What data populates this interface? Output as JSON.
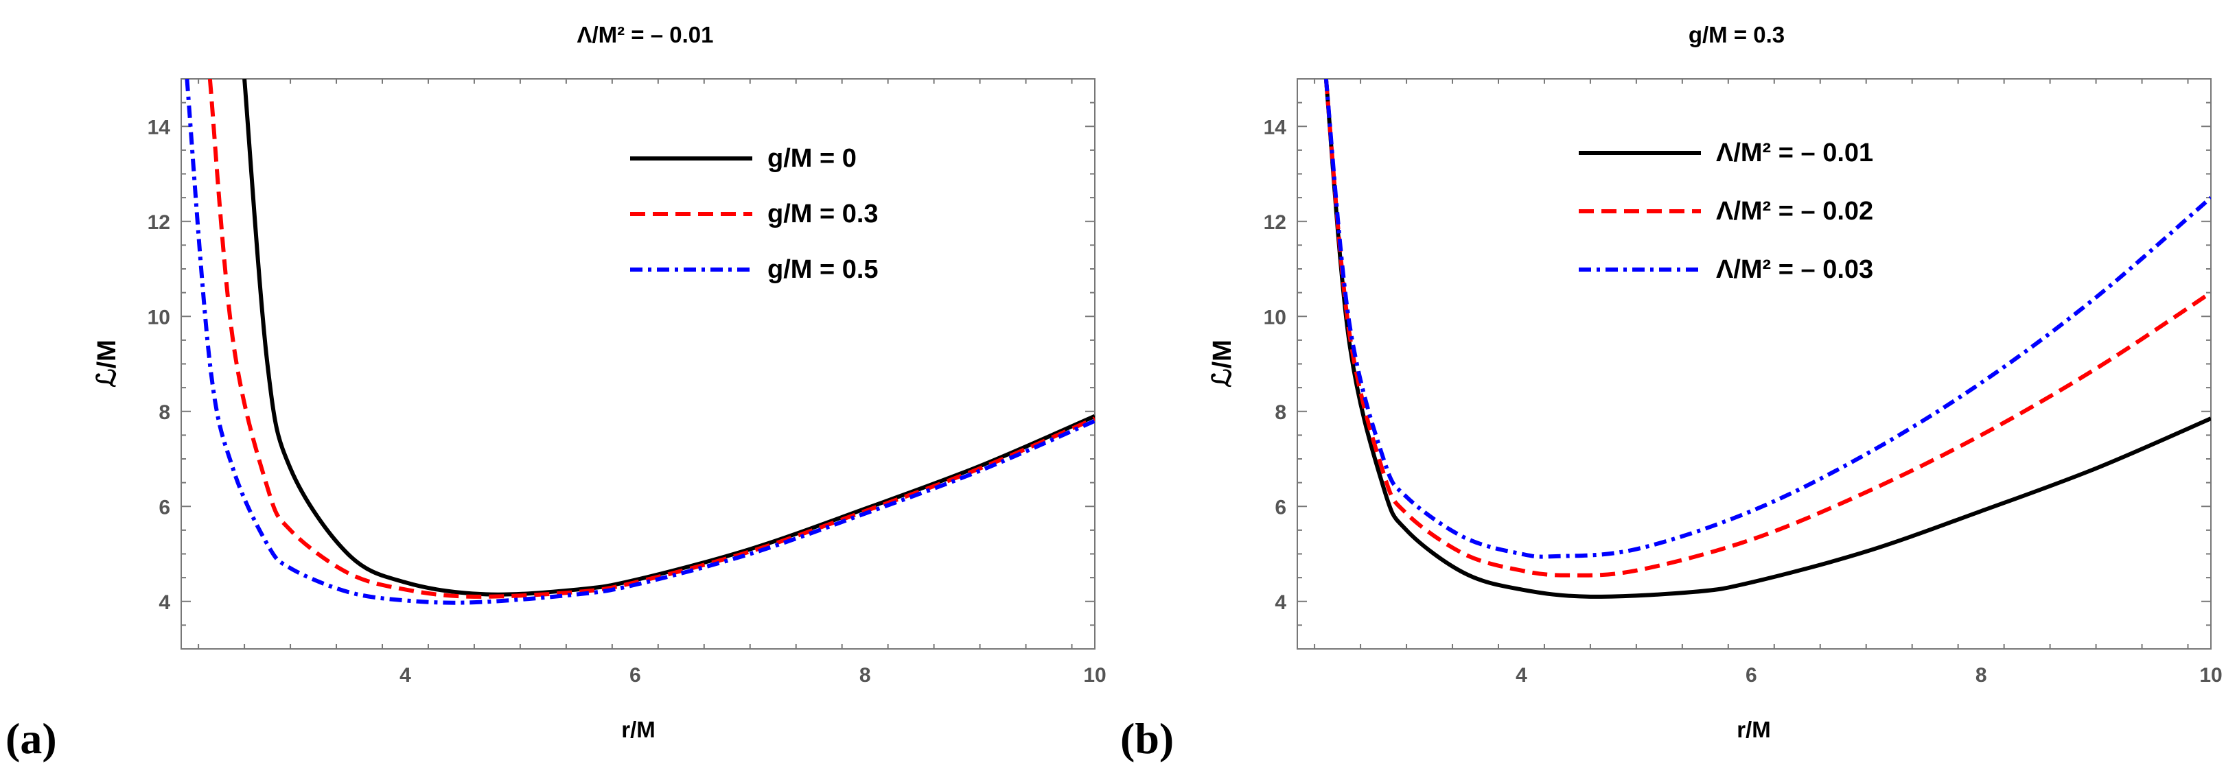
{
  "chart_data": [
    {
      "type": "line",
      "panel_label": "(a)",
      "title": "Λ/M² = – 0.01",
      "xlabel": "r/M",
      "ylabel": "ℒ/M",
      "xlim": [
        2.05,
        10.0
      ],
      "ylim": [
        3.0,
        15.0
      ],
      "xticks": [
        "4",
        "6",
        "8",
        "10"
      ],
      "yticks": [
        "4",
        "6",
        "8",
        "10",
        "12",
        "14"
      ],
      "legend_position": "top-right",
      "grid": false,
      "series": [
        {
          "name": "g/M = 0",
          "style": "solid",
          "color": "#000000",
          "lambda": -0.01,
          "g": 0.0,
          "x": [
            2.6,
            2.8,
            3.0,
            3.5,
            4.0,
            4.7,
            5.5,
            6.0,
            7.0,
            8.0,
            9.0,
            10.0
          ],
          "y": [
            15.0,
            9.0,
            6.8,
            5.0,
            4.4,
            4.15,
            4.25,
            4.45,
            5.1,
            5.95,
            6.85,
            7.9
          ]
        },
        {
          "name": "g/M = 0.3",
          "style": "dashed",
          "color": "#ff0000",
          "lambda": -0.01,
          "g": 0.3,
          "x": [
            2.3,
            2.5,
            2.8,
            3.0,
            3.5,
            4.0,
            4.6,
            5.5,
            6.0,
            7.0,
            8.0,
            9.0,
            10.0
          ],
          "y": [
            15.0,
            9.5,
            6.4,
            5.5,
            4.6,
            4.25,
            4.1,
            4.2,
            4.4,
            5.05,
            5.9,
            6.8,
            7.85
          ]
        },
        {
          "name": "g/M = 0.5",
          "style": "dash-dot",
          "color": "#0000ff",
          "lambda": -0.01,
          "g": 0.5,
          "x": [
            2.1,
            2.3,
            2.5,
            2.8,
            3.0,
            3.5,
            4.0,
            4.6,
            5.5,
            6.0,
            7.0,
            8.0,
            9.0,
            10.0
          ],
          "y": [
            15.0,
            9.0,
            6.8,
            5.2,
            4.7,
            4.2,
            4.02,
            3.98,
            4.15,
            4.35,
            5.0,
            5.85,
            6.75,
            7.8
          ]
        }
      ]
    },
    {
      "type": "line",
      "panel_label": "(b)",
      "title": "g/M = 0.3",
      "xlabel": "r/M",
      "ylabel": "ℒ/M",
      "xlim": [
        2.05,
        10.0
      ],
      "ylim": [
        3.0,
        15.0
      ],
      "xticks": [
        "4",
        "6",
        "8",
        "10"
      ],
      "yticks": [
        "4",
        "6",
        "8",
        "10",
        "12",
        "14"
      ],
      "legend_position": "top-right",
      "grid": false,
      "series": [
        {
          "name": "Λ/M² = – 0.01",
          "style": "solid",
          "color": "#000000",
          "lambda": -0.01,
          "g": 0.3,
          "x": [
            2.3,
            2.5,
            2.8,
            3.0,
            3.5,
            4.0,
            4.6,
            5.5,
            6.0,
            7.0,
            8.0,
            9.0,
            10.0
          ],
          "y": [
            15.0,
            9.5,
            6.4,
            5.5,
            4.6,
            4.25,
            4.1,
            4.2,
            4.4,
            5.05,
            5.9,
            6.8,
            7.85
          ]
        },
        {
          "name": "Λ/M² = – 0.02",
          "style": "dashed",
          "color": "#ff0000",
          "lambda": -0.02,
          "g": 0.3,
          "x": [
            2.3,
            2.5,
            2.8,
            3.0,
            3.5,
            4.0,
            4.4,
            5.0,
            6.0,
            7.0,
            8.0,
            9.0,
            10.0
          ],
          "y": [
            15.0,
            9.7,
            6.7,
            5.85,
            5.0,
            4.65,
            4.55,
            4.65,
            5.3,
            6.3,
            7.5,
            8.9,
            10.5
          ]
        },
        {
          "name": "Λ/M² = – 0.03",
          "style": "dash-dot",
          "color": "#0000ff",
          "lambda": -0.03,
          "g": 0.3,
          "x": [
            2.3,
            2.5,
            2.8,
            3.0,
            3.5,
            4.0,
            4.3,
            5.0,
            6.0,
            7.0,
            8.0,
            9.0,
            10.0
          ],
          "y": [
            15.0,
            9.9,
            7.0,
            6.2,
            5.35,
            5.0,
            4.95,
            5.1,
            5.9,
            7.1,
            8.6,
            10.4,
            12.5
          ]
        }
      ]
    }
  ]
}
